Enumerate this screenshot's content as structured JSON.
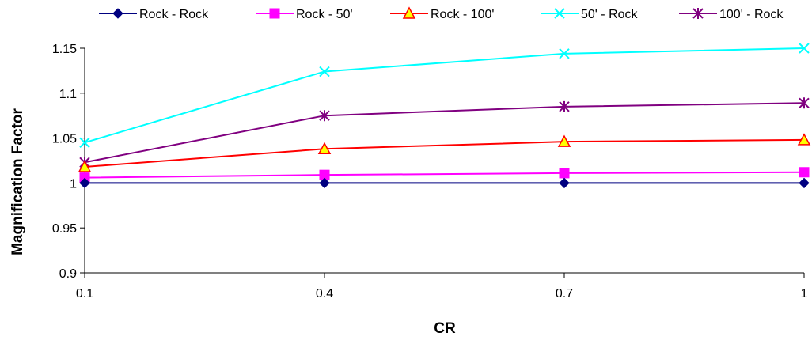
{
  "chart_data": {
    "type": "line",
    "title": "",
    "xlabel": "CR",
    "ylabel": "Magnification Factor",
    "x": [
      0.1,
      0.4,
      0.7,
      1
    ],
    "x_tick_labels": [
      "0.1",
      "0.4",
      "0.7",
      "1"
    ],
    "ylim": [
      0.9,
      1.15
    ],
    "y_ticks": [
      0.9,
      0.95,
      1,
      1.05,
      1.1,
      1.15
    ],
    "y_tick_labels": [
      "0.9",
      "0.95",
      "1",
      "1.05",
      "1.1",
      "1.15"
    ],
    "grid": false,
    "legend_position": "top",
    "series": [
      {
        "name": "Rock - Rock",
        "values": [
          1.0,
          1.0,
          1.0,
          1.0
        ],
        "color": "#000080",
        "marker": "diamond"
      },
      {
        "name": "Rock - 50'",
        "values": [
          1.006,
          1.009,
          1.011,
          1.012
        ],
        "color": "#FF00FF",
        "marker": "square"
      },
      {
        "name": "Rock - 100'",
        "values": [
          1.018,
          1.038,
          1.046,
          1.048
        ],
        "color": "#FF0000",
        "marker": "triangle",
        "marker_fill": "#FFFF00"
      },
      {
        "name": "50' - Rock",
        "values": [
          1.045,
          1.124,
          1.144,
          1.15
        ],
        "color": "#00FFFF",
        "marker": "x"
      },
      {
        "name": "100' - Rock",
        "values": [
          1.023,
          1.075,
          1.085,
          1.089
        ],
        "color": "#800080",
        "marker": "star"
      }
    ]
  }
}
